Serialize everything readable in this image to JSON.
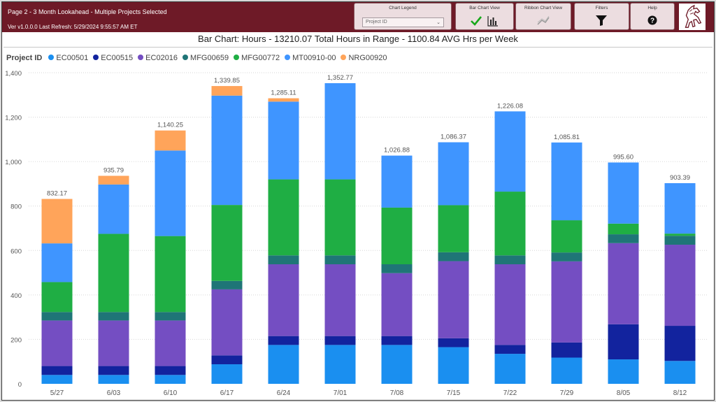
{
  "header": {
    "page_title": "Page 2 - 3 Month Lookahead - Multiple Projects Selected",
    "version": "Ver v1.0.0.0 Last Refresh: 5/29/2024 9:55:57 AM ET",
    "chart_legend_label": "Chart Legend",
    "chart_legend_value": "Project ID",
    "bar_chart_view_label": "Bar Chart View",
    "ribbon_chart_view_label": "Ribbon Chart View",
    "filters_label": "Filters",
    "help_label": "Help"
  },
  "colors": {
    "header_bg": "#6e1a27",
    "EC00501": "#1a8ff0",
    "EC00515": "#12239e",
    "EC02016": "#744ec2",
    "MFG00659": "#1f7577",
    "MFG00772": "#1fae44",
    "MT00910-00": "#3f95ff",
    "NRG00920": "#ffa45a"
  },
  "chart_data": {
    "type": "bar",
    "stacked": true,
    "title": "Bar Chart: Hours - 13210.07 Total Hours in Range - 1100.84 AVG Hrs per Week",
    "legend_title": "Project ID",
    "legend_placement": "top-left",
    "categories": [
      "5/27",
      "6/03",
      "6/10",
      "6/17",
      "6/24",
      "7/01",
      "7/08",
      "7/15",
      "7/22",
      "7/29",
      "8/05",
      "8/12"
    ],
    "ylim": [
      0,
      1400
    ],
    "y_ticks": [
      "0",
      "200",
      "400",
      "600",
      "800",
      "1,000",
      "1,200",
      "1,400"
    ],
    "grid": true,
    "totals": [
      "832.17",
      "935.79",
      "1,140.25",
      "1,339.85",
      "1,285.11",
      "1,352.77",
      "1,026.88",
      "1,086.37",
      "1,226.08",
      "1,085.81",
      "995.60",
      "903.39"
    ],
    "series": [
      {
        "name": "EC00501",
        "values": [
          40,
          40,
          40,
          88,
          175,
          175,
          175,
          165,
          135,
          118,
          110,
          103
        ]
      },
      {
        "name": "EC00515",
        "values": [
          40,
          40,
          40,
          40,
          40,
          40,
          40,
          40,
          40,
          68,
          158,
          158
        ]
      },
      {
        "name": "EC02016",
        "values": [
          205,
          205,
          205,
          297,
          323,
          323,
          283,
          347,
          363,
          365,
          365,
          365
        ]
      },
      {
        "name": "MFG00659",
        "values": [
          38,
          38,
          38,
          38,
          40,
          40,
          40,
          40,
          40,
          40,
          40,
          40
        ]
      },
      {
        "name": "MFG00772",
        "values": [
          135,
          352,
          342,
          342,
          342,
          342,
          255,
          212,
          287,
          145,
          48,
          10
        ]
      },
      {
        "name": "MT00910-00",
        "values": [
          174,
          222,
          385,
          492,
          350,
          433,
          234,
          283,
          361,
          350,
          275,
          227
        ]
      },
      {
        "name": "NRG00920",
        "values": [
          200,
          39,
          90,
          43,
          15,
          0,
          0,
          0,
          0,
          0,
          0,
          0
        ]
      }
    ]
  }
}
